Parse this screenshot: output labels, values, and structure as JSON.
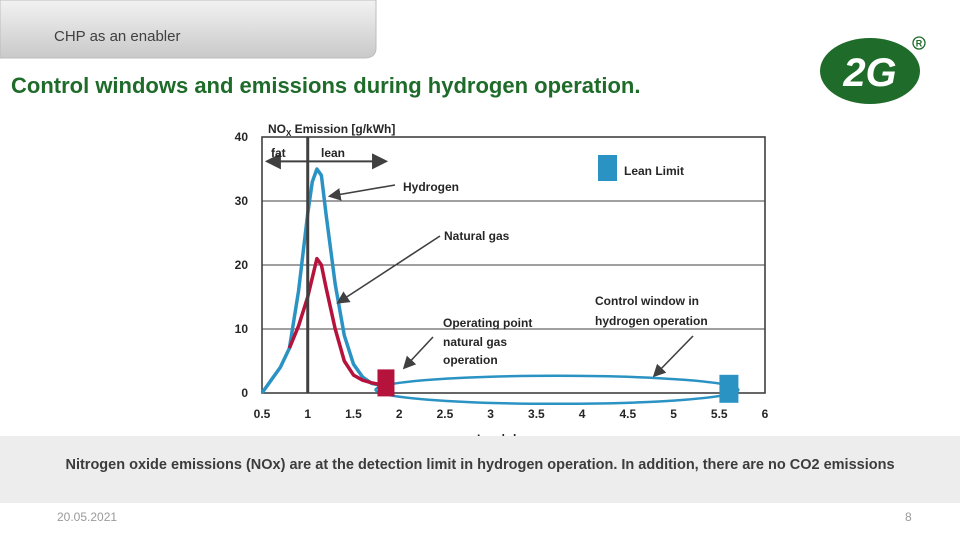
{
  "header": {
    "section_label": "CHP as an enabler",
    "title": "Control windows and emissions during hydrogen operation."
  },
  "logo": {
    "text": "2G",
    "registered": "®",
    "color": "#1e6b2a"
  },
  "chart_data": {
    "type": "line",
    "ylabel_main": "NO",
    "ylabel_sub": "X",
    "ylabel_rest": " Emission [g/kWh]",
    "xlabel": "Lambda",
    "xlim": [
      0.5,
      6
    ],
    "ylim": [
      0,
      40
    ],
    "xticks": [
      "0.5",
      "1",
      "1.5",
      "2",
      "2.5",
      "3",
      "3.5",
      "4",
      "4.5",
      "5",
      "5.5",
      "6"
    ],
    "yticks": [
      "0",
      "10",
      "20",
      "30",
      "40"
    ],
    "grid": "horizontal",
    "vertical_marker_x": 1.0,
    "series": [
      {
        "name": "Hydrogen",
        "color": "#2b93c3",
        "x": [
          0.5,
          0.6,
          0.7,
          0.8,
          0.9,
          1.0,
          1.05,
          1.1,
          1.15,
          1.2,
          1.3,
          1.4,
          1.5,
          1.6,
          1.7,
          1.8,
          1.85
        ],
        "values": [
          0,
          2,
          4,
          7,
          16,
          28,
          33,
          35,
          34,
          28,
          17,
          9,
          4.5,
          2.5,
          1.5,
          1.2,
          1.0
        ]
      },
      {
        "name": "Natural gas",
        "color": "#b5123c",
        "x": [
          0.8,
          0.9,
          1.0,
          1.05,
          1.1,
          1.15,
          1.2,
          1.3,
          1.4,
          1.5,
          1.6,
          1.7,
          1.8,
          1.85
        ],
        "values": [
          7,
          10.5,
          15,
          18,
          21,
          20,
          16.5,
          10,
          5,
          2.8,
          2,
          1.6,
          1.3,
          1.2
        ]
      }
    ],
    "annotations": {
      "fat": "fat",
      "lean": "lean",
      "hydrogen": "Hydrogen",
      "natural_gas": "Natural gas",
      "operating_point": [
        "Operating point",
        "natural gas",
        "operation"
      ],
      "control_window": [
        "Control window in",
        "hydrogen operation"
      ]
    },
    "markers": {
      "operating_point": {
        "x": 1.85,
        "y": 1.5,
        "color": "#b5123c"
      },
      "lean_limit": {
        "x": 5.6,
        "y": 0.5,
        "color": "#2b93c3"
      }
    },
    "control_window": {
      "x_start": 1.85,
      "x_end": 5.6,
      "y": 0.5
    },
    "legend": {
      "label": "Lean Limit",
      "color": "#2b93c3",
      "position": "top-right"
    }
  },
  "caption": "Nitrogen oxide emissions (NOx) are at the detection limit in hydrogen operation. In addition, there are no CO2 emissions",
  "footer": {
    "date": "20.05.2021",
    "page": "8"
  }
}
